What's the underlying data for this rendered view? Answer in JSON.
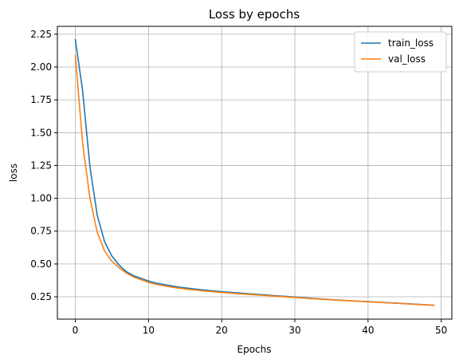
{
  "chart_data": {
    "type": "line",
    "title": "Loss by epochs",
    "xlabel": "Epochs",
    "ylabel": "loss",
    "xlim": [
      -2.45,
      51.45
    ],
    "ylim": [
      0.08,
      2.31
    ],
    "xticks": [
      0,
      10,
      20,
      30,
      40,
      50
    ],
    "yticks": [
      0.25,
      0.5,
      0.75,
      1.0,
      1.25,
      1.5,
      1.75,
      2.0,
      2.25
    ],
    "ytick_labels": [
      "0.25",
      "0.50",
      "0.75",
      "1.00",
      "1.25",
      "1.50",
      "1.75",
      "2.00",
      "2.25"
    ],
    "grid": true,
    "legend_position": "top-right",
    "x": [
      0,
      1,
      2,
      3,
      4,
      5,
      6,
      7,
      8,
      9,
      10,
      11,
      12,
      13,
      14,
      15,
      16,
      17,
      18,
      19,
      20,
      21,
      22,
      23,
      24,
      25,
      26,
      27,
      28,
      29,
      30,
      31,
      32,
      33,
      34,
      35,
      36,
      37,
      38,
      39,
      40,
      41,
      42,
      43,
      44,
      45,
      46,
      47,
      48,
      49
    ],
    "series": [
      {
        "name": "train_loss",
        "color": "#1f77b4",
        "values": [
          2.21,
          1.82,
          1.24,
          0.87,
          0.67,
          0.56,
          0.49,
          0.44,
          0.41,
          0.39,
          0.37,
          0.355,
          0.345,
          0.335,
          0.325,
          0.318,
          0.311,
          0.305,
          0.299,
          0.294,
          0.289,
          0.285,
          0.281,
          0.276,
          0.272,
          0.268,
          0.264,
          0.26,
          0.256,
          0.252,
          0.248,
          0.244,
          0.24,
          0.236,
          0.232,
          0.228,
          0.225,
          0.222,
          0.219,
          0.216,
          0.213,
          0.21,
          0.207,
          0.204,
          0.201,
          0.198,
          0.195,
          0.192,
          0.189,
          0.186
        ]
      },
      {
        "name": "val_loss",
        "color": "#ff7f0e",
        "values": [
          2.09,
          1.42,
          1.0,
          0.74,
          0.6,
          0.52,
          0.47,
          0.43,
          0.4,
          0.38,
          0.36,
          0.345,
          0.335,
          0.325,
          0.317,
          0.31,
          0.304,
          0.298,
          0.293,
          0.288,
          0.283,
          0.279,
          0.275,
          0.271,
          0.267,
          0.263,
          0.26,
          0.256,
          0.252,
          0.249,
          0.245,
          0.241,
          0.237,
          0.234,
          0.231,
          0.227,
          0.224,
          0.221,
          0.218,
          0.215,
          0.212,
          0.209,
          0.206,
          0.203,
          0.2,
          0.197,
          0.194,
          0.191,
          0.188,
          0.185
        ]
      }
    ]
  }
}
